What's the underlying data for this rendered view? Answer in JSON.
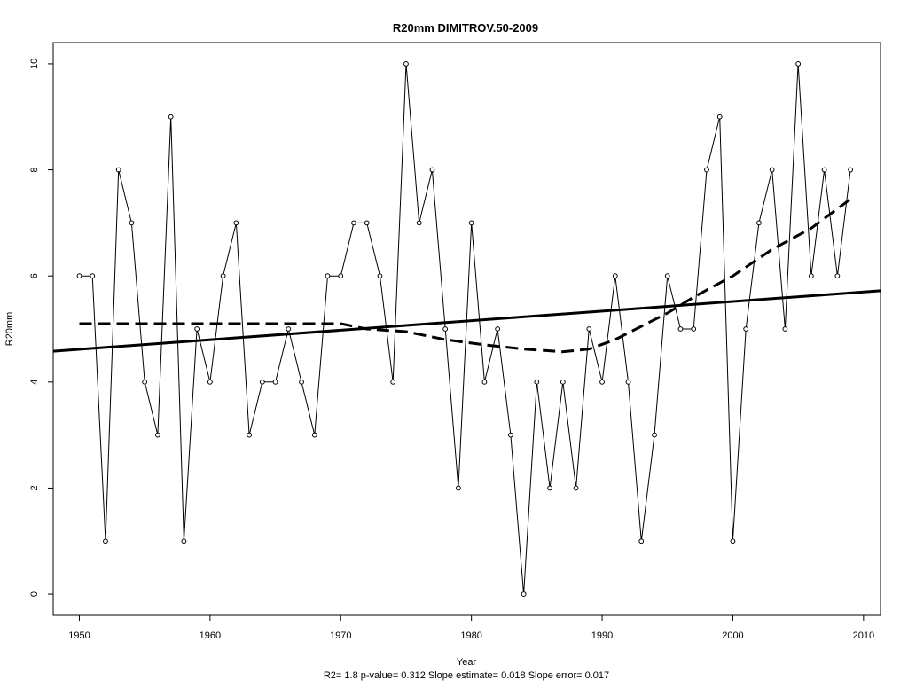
{
  "chart_data": {
    "type": "line",
    "title": "R20mm    DIMITROV.50-2009",
    "xlabel": "Year",
    "ylabel": "R20mm",
    "xlim": [
      1948,
      2011.3
    ],
    "ylim": [
      -0.4,
      10.4
    ],
    "x_ticks": [
      "1950",
      "1960",
      "1970",
      "1980",
      "1990",
      "2000",
      "2010"
    ],
    "y_ticks": [
      "0",
      "2",
      "4",
      "6",
      "8",
      "10"
    ],
    "grid": false,
    "legend": "none",
    "series": [
      {
        "style": "line-with-open-circles",
        "x": [
          1950,
          1951,
          1952,
          1953,
          1954,
          1955,
          1956,
          1957,
          1958,
          1959,
          1960,
          1961,
          1962,
          1963,
          1964,
          1965,
          1966,
          1967,
          1968,
          1969,
          1970,
          1971,
          1972,
          1973,
          1974,
          1975,
          1976,
          1977,
          1978,
          1979,
          1980,
          1981,
          1982,
          1983,
          1984,
          1985,
          1986,
          1987,
          1988,
          1989,
          1990,
          1991,
          1992,
          1993,
          1994,
          1995,
          1996,
          1997,
          1998,
          1999,
          2000,
          2001,
          2002,
          2003,
          2004,
          2005,
          2006,
          2007,
          2008,
          2009
        ],
        "y": [
          6,
          6,
          1,
          8,
          7,
          4,
          3,
          9,
          1,
          5,
          4,
          6,
          7,
          3,
          4,
          4,
          5,
          4,
          3,
          6,
          6,
          7,
          7,
          6,
          4,
          10,
          7,
          8,
          5,
          2,
          7,
          4,
          5,
          3,
          0,
          4,
          2,
          4,
          2,
          5,
          4,
          6,
          4,
          1,
          3,
          6,
          5,
          5,
          8,
          9,
          1,
          5,
          7,
          8,
          5,
          10,
          6,
          8,
          6,
          8
        ]
      },
      {
        "style": "linear-trend-solid",
        "x": [
          1948,
          2011.3
        ],
        "y": [
          4.58,
          5.72
        ]
      },
      {
        "style": "smooth-dashed",
        "x": [
          1950,
          1955,
          1960,
          1965,
          1970,
          1972,
          1975,
          1978,
          1981,
          1984,
          1987,
          1989,
          1991,
          1993,
          1995,
          1997,
          2000,
          2003,
          2006,
          2009
        ],
        "y": [
          5.1,
          5.1,
          5.1,
          5.1,
          5.1,
          5.0,
          4.95,
          4.8,
          4.7,
          4.62,
          4.57,
          4.62,
          4.8,
          5.05,
          5.3,
          5.6,
          6.0,
          6.5,
          6.9,
          7.45
        ]
      }
    ],
    "footnote": "R2= 1.8  p-value= 0.312  Slope estimate= 0.018  Slope error= 0.017"
  }
}
